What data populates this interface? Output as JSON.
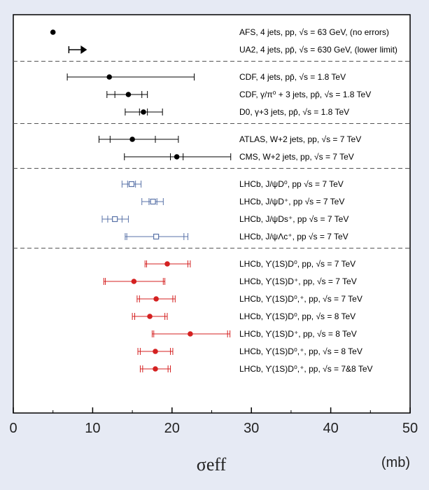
{
  "chart_data": {
    "type": "scatter",
    "title": "",
    "xlabel": "σeff",
    "xunit": "(mb)",
    "xlim": [
      0,
      50
    ],
    "xticks": [
      0,
      10,
      20,
      30,
      40,
      50
    ],
    "grid": false,
    "groups": [
      {
        "measurements": [
          {
            "label": "AFS, 4 jets, pp, √s = 63 GeV, (no errors)",
            "value": 5.0,
            "color": "#000000",
            "marker": "filled-circle"
          },
          {
            "label": "UA2, 4 jets, pp̄, √s = 630 GeV, (lower limit)",
            "value": 8.5,
            "lower_limit": true,
            "color": "#000000",
            "marker": "arrow-right"
          }
        ]
      },
      {
        "measurements": [
          {
            "label": "CDF, 4 jets, pp̄, √s = 1.8 TeV",
            "value": 12.1,
            "stat_err": [
              12.1,
              12.1
            ],
            "tot_err": [
              6.8,
              22.8
            ],
            "color": "#000000",
            "marker": "filled-circle"
          },
          {
            "label": "CDF, γ/π⁰ + 3 jets, pp̄, √s = 1.8 TeV",
            "value": 14.5,
            "stat_err": [
              12.8,
              16.2
            ],
            "tot_err": [
              11.8,
              16.9
            ],
            "color": "#000000",
            "marker": "filled-circle"
          },
          {
            "label": "D0, γ+3 jets, pp̄, √s = 1.8 TeV",
            "value": 16.4,
            "stat_err": [
              15.9,
              16.9
            ],
            "tot_err": [
              14.1,
              18.8
            ],
            "color": "#000000",
            "marker": "filled-circle"
          }
        ]
      },
      {
        "measurements": [
          {
            "label": "ATLAS, W+2 jets, pp, √s = 7 TeV",
            "value": 15.0,
            "stat_err": [
              12.2,
              17.9
            ],
            "tot_err": [
              10.8,
              20.8
            ],
            "color": "#000000",
            "marker": "filled-circle"
          },
          {
            "label": "CMS, W+2 jets, pp, √s = 7 TeV",
            "value": 20.6,
            "stat_err": [
              19.8,
              21.4
            ],
            "tot_err": [
              14.0,
              27.4
            ],
            "color": "#000000",
            "marker": "filled-circle"
          }
        ]
      },
      {
        "measurements": [
          {
            "label": "LHCb, J/ψD⁰, pp √s = 7 TeV",
            "value": 14.9,
            "stat_err": [
              14.4,
              15.4
            ],
            "tot_err": [
              13.7,
              16.1
            ],
            "color": "#5a73a8",
            "marker": "open-square"
          },
          {
            "label": "LHCb, J/ψD⁺, pp √s = 7 TeV",
            "value": 17.6,
            "stat_err": [
              17.1,
              18.1
            ],
            "tot_err": [
              16.2,
              18.9
            ],
            "color": "#5a73a8",
            "marker": "open-square"
          },
          {
            "label": "LHCb, J/ψDs⁺, pp √s = 7 TeV",
            "value": 12.8,
            "stat_err": [
              11.9,
              13.7
            ],
            "tot_err": [
              11.2,
              14.5
            ],
            "color": "#5a73a8",
            "marker": "open-square"
          },
          {
            "label": "LHCb, J/ψΛc⁺, pp √s = 7 TeV",
            "value": 18.0,
            "stat_err": [
              14.3,
              21.5
            ],
            "tot_err": [
              14.1,
              22.0
            ],
            "color": "#5a73a8",
            "marker": "open-square"
          }
        ]
      },
      {
        "measurements": [
          {
            "label": "LHCb, ϒ(1S)D⁰, pp, √s = 7 TeV",
            "value": 19.4,
            "stat_err": [
              16.8,
              22.0
            ],
            "tot_err": [
              16.6,
              22.3
            ],
            "color": "#d42020",
            "marker": "filled-circle"
          },
          {
            "label": "LHCb, ϒ(1S)D⁺, pp, √s = 7 TeV",
            "value": 15.2,
            "stat_err": [
              11.6,
              18.9
            ],
            "tot_err": [
              11.4,
              19.1
            ],
            "color": "#d42020",
            "marker": "filled-circle"
          },
          {
            "label": "LHCb, ϒ(1S)D⁰,⁺, pp, √s = 7 TeV",
            "value": 18.0,
            "stat_err": [
              15.9,
              20.1
            ],
            "tot_err": [
              15.6,
              20.4
            ],
            "color": "#d42020",
            "marker": "filled-circle"
          },
          {
            "label": "LHCb, ϒ(1S)D⁰, pp, √s = 8 TeV",
            "value": 17.2,
            "stat_err": [
              15.3,
              19.1
            ],
            "tot_err": [
              15.0,
              19.4
            ],
            "color": "#d42020",
            "marker": "filled-circle"
          },
          {
            "label": "LHCb, ϒ(1S)D⁺, pp, √s = 8 TeV",
            "value": 22.3,
            "stat_err": [
              17.7,
              27.0
            ],
            "tot_err": [
              17.5,
              27.3
            ],
            "color": "#d42020",
            "marker": "filled-circle"
          },
          {
            "label": "LHCb, ϒ(1S)D⁰,⁺, pp, √s = 8 TeV",
            "value": 17.9,
            "stat_err": [
              16.0,
              19.8
            ],
            "tot_err": [
              15.7,
              20.1
            ],
            "color": "#d42020",
            "marker": "filled-circle"
          },
          {
            "label": "LHCb, ϒ(1S)D⁰,⁺, pp, √s = 7&8 TeV",
            "value": 17.9,
            "stat_err": [
              16.3,
              19.5
            ],
            "tot_err": [
              16.0,
              19.8
            ],
            "color": "#d42020",
            "marker": "filled-circle"
          }
        ]
      }
    ]
  }
}
